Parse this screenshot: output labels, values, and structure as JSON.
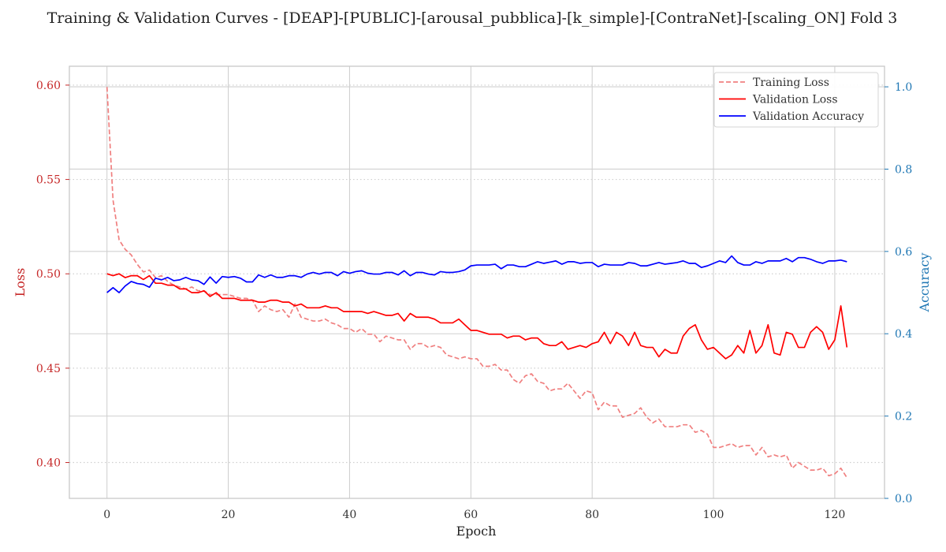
{
  "chart_data": {
    "type": "line",
    "title": "Training & Validation Curves - [DEAP]-[PUBLIC]-[arousal_pubblica]-[k_simple]-[ContraNet]-[scaling_ON] Fold 3",
    "xlabel": "Epoch",
    "ylabel_left": "Loss",
    "ylabel_right": "Accuracy",
    "xlim": [
      -6.2,
      128.2
    ],
    "ylim_left": [
      0.381,
      0.61
    ],
    "ylim_right": [
      0.0,
      1.05
    ],
    "xticks": [
      0,
      20,
      40,
      60,
      80,
      100,
      120
    ],
    "yticks_left": [
      0.4,
      0.45,
      0.5,
      0.55,
      0.6
    ],
    "yticks_right": [
      0.0,
      0.2,
      0.4,
      0.6,
      0.8,
      1.0
    ],
    "ytick_labels_left": [
      "0.40",
      "0.45",
      "0.50",
      "0.55",
      "0.60"
    ],
    "ytick_labels_right": [
      "0.0",
      "0.2",
      "0.4",
      "0.6",
      "0.8",
      "1.0"
    ],
    "grid": true,
    "legend_position": "top-right",
    "colors": {
      "training_loss": "#f08080",
      "validation_loss": "#ff0000",
      "validation_accuracy": "#0000ff",
      "left_axis": "#c62828",
      "right_axis": "#1f77b4",
      "grid": "#d0d0d0",
      "spine": "#c8c8c8"
    },
    "x": [
      0,
      1,
      2,
      3,
      4,
      5,
      6,
      7,
      8,
      9,
      10,
      11,
      12,
      13,
      14,
      15,
      16,
      17,
      18,
      19,
      20,
      21,
      22,
      23,
      24,
      25,
      26,
      27,
      28,
      29,
      30,
      31,
      32,
      33,
      34,
      35,
      36,
      37,
      38,
      39,
      40,
      41,
      42,
      43,
      44,
      45,
      46,
      47,
      48,
      49,
      50,
      51,
      52,
      53,
      54,
      55,
      56,
      57,
      58,
      59,
      60,
      61,
      62,
      63,
      64,
      65,
      66,
      67,
      68,
      69,
      70,
      71,
      72,
      73,
      74,
      75,
      76,
      77,
      78,
      79,
      80,
      81,
      82,
      83,
      84,
      85,
      86,
      87,
      88,
      89,
      90,
      91,
      92,
      93,
      94,
      95,
      96,
      97,
      98,
      99,
      100,
      101,
      102,
      103,
      104,
      105,
      106,
      107,
      108,
      109,
      110,
      111,
      112,
      113,
      114,
      115,
      116,
      117,
      118,
      119,
      120,
      121,
      122
    ],
    "series": [
      {
        "name": "Training Loss",
        "axis": "left",
        "style": "dashed",
        "values": [
          0.599,
          0.539,
          0.518,
          0.513,
          0.51,
          0.505,
          0.501,
          0.502,
          0.498,
          0.499,
          0.496,
          0.494,
          0.493,
          0.492,
          0.493,
          0.491,
          0.491,
          0.489,
          0.489,
          0.489,
          0.489,
          0.488,
          0.487,
          0.487,
          0.486,
          0.48,
          0.483,
          0.481,
          0.48,
          0.481,
          0.477,
          0.484,
          0.477,
          0.476,
          0.475,
          0.475,
          0.476,
          0.474,
          0.473,
          0.471,
          0.471,
          0.469,
          0.471,
          0.468,
          0.468,
          0.464,
          0.467,
          0.466,
          0.465,
          0.465,
          0.46,
          0.463,
          0.463,
          0.461,
          0.462,
          0.461,
          0.457,
          0.456,
          0.455,
          0.456,
          0.455,
          0.455,
          0.451,
          0.451,
          0.452,
          0.449,
          0.449,
          0.444,
          0.442,
          0.446,
          0.447,
          0.443,
          0.442,
          0.438,
          0.439,
          0.439,
          0.442,
          0.438,
          0.434,
          0.438,
          0.437,
          0.428,
          0.432,
          0.43,
          0.43,
          0.424,
          0.425,
          0.426,
          0.429,
          0.424,
          0.421,
          0.423,
          0.419,
          0.419,
          0.419,
          0.42,
          0.42,
          0.416,
          0.417,
          0.415,
          0.408,
          0.408,
          0.409,
          0.41,
          0.408,
          0.409,
          0.409,
          0.404,
          0.408,
          0.403,
          0.404,
          0.403,
          0.404,
          0.397,
          0.4,
          0.398,
          0.396,
          0.396,
          0.397,
          0.393,
          0.394,
          0.397,
          0.392
        ]
      },
      {
        "name": "Validation Loss",
        "axis": "left",
        "style": "solid",
        "values": [
          0.5,
          0.499,
          0.5,
          0.498,
          0.499,
          0.499,
          0.497,
          0.499,
          0.495,
          0.495,
          0.494,
          0.494,
          0.492,
          0.492,
          0.49,
          0.49,
          0.491,
          0.488,
          0.49,
          0.487,
          0.487,
          0.487,
          0.486,
          0.486,
          0.486,
          0.485,
          0.485,
          0.486,
          0.486,
          0.485,
          0.485,
          0.483,
          0.484,
          0.482,
          0.482,
          0.482,
          0.483,
          0.482,
          0.482,
          0.48,
          0.48,
          0.48,
          0.48,
          0.479,
          0.48,
          0.479,
          0.478,
          0.478,
          0.479,
          0.475,
          0.479,
          0.477,
          0.477,
          0.477,
          0.476,
          0.474,
          0.474,
          0.474,
          0.476,
          0.473,
          0.47,
          0.47,
          0.469,
          0.468,
          0.468,
          0.468,
          0.466,
          0.467,
          0.467,
          0.465,
          0.466,
          0.466,
          0.463,
          0.462,
          0.462,
          0.464,
          0.46,
          0.461,
          0.462,
          0.461,
          0.463,
          0.464,
          0.469,
          0.463,
          0.469,
          0.467,
          0.462,
          0.469,
          0.462,
          0.461,
          0.461,
          0.456,
          0.46,
          0.458,
          0.458,
          0.467,
          0.471,
          0.473,
          0.465,
          0.46,
          0.461,
          0.458,
          0.455,
          0.457,
          0.462,
          0.458,
          0.47,
          0.458,
          0.462,
          0.473,
          0.458,
          0.457,
          0.469,
          0.468,
          0.461,
          0.461,
          0.469,
          0.472,
          0.469,
          0.46,
          0.465,
          0.483,
          0.461
        ]
      },
      {
        "name": "Validation Accuracy",
        "axis": "right",
        "style": "solid",
        "values": [
          0.5,
          0.512,
          0.5,
          0.516,
          0.527,
          0.522,
          0.52,
          0.513,
          0.535,
          0.531,
          0.537,
          0.529,
          0.531,
          0.537,
          0.531,
          0.529,
          0.52,
          0.538,
          0.523,
          0.539,
          0.537,
          0.539,
          0.535,
          0.526,
          0.526,
          0.543,
          0.537,
          0.543,
          0.537,
          0.537,
          0.541,
          0.541,
          0.537,
          0.545,
          0.549,
          0.545,
          0.549,
          0.549,
          0.541,
          0.551,
          0.547,
          0.551,
          0.553,
          0.547,
          0.545,
          0.545,
          0.549,
          0.549,
          0.543,
          0.553,
          0.541,
          0.549,
          0.549,
          0.545,
          0.543,
          0.551,
          0.549,
          0.549,
          0.551,
          0.555,
          0.565,
          0.567,
          0.567,
          0.567,
          0.569,
          0.558,
          0.567,
          0.567,
          0.563,
          0.563,
          0.569,
          0.575,
          0.571,
          0.574,
          0.577,
          0.569,
          0.575,
          0.575,
          0.571,
          0.573,
          0.573,
          0.563,
          0.569,
          0.567,
          0.567,
          0.567,
          0.573,
          0.571,
          0.565,
          0.565,
          0.569,
          0.573,
          0.569,
          0.571,
          0.573,
          0.577,
          0.571,
          0.571,
          0.561,
          0.565,
          0.571,
          0.577,
          0.573,
          0.589,
          0.573,
          0.567,
          0.567,
          0.575,
          0.571,
          0.577,
          0.577,
          0.577,
          0.583,
          0.575,
          0.585,
          0.585,
          0.581,
          0.575,
          0.571,
          0.577,
          0.577,
          0.579,
          0.575
        ]
      }
    ],
    "legend": [
      "Training Loss",
      "Validation Loss",
      "Validation Accuracy"
    ]
  }
}
